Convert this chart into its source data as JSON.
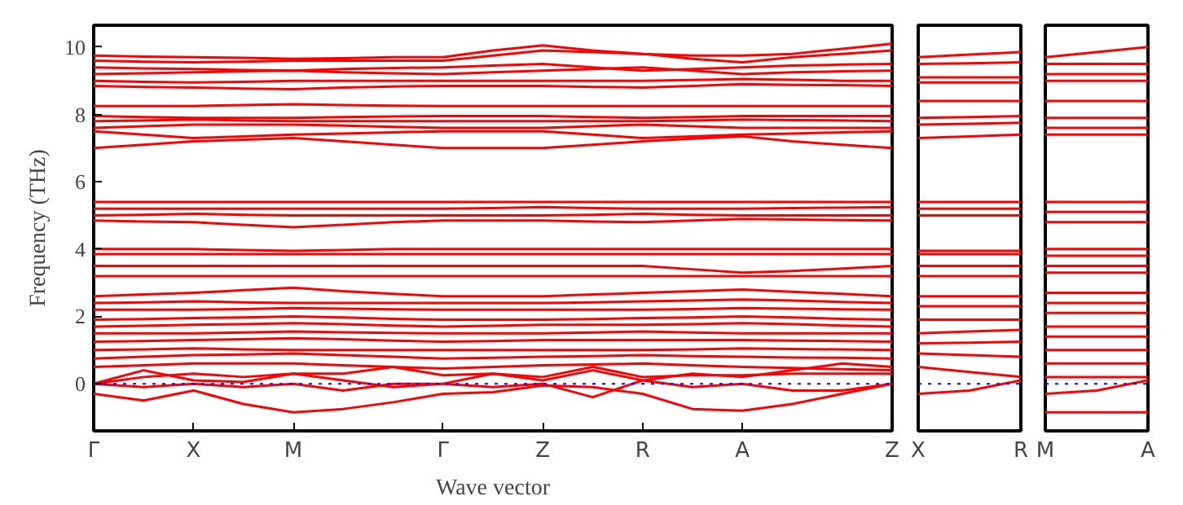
{
  "chart_data": [
    {
      "type": "line",
      "xlabel": "Wave vector",
      "ylabel": "Frequency (THz)",
      "categories": [
        "Γ",
        null,
        "X",
        null,
        "M",
        null,
        null,
        "Γ",
        null,
        "Z",
        null,
        "R",
        null,
        "A",
        null,
        null,
        "Z"
      ],
      "ylim": [
        -1.4,
        10.65
      ],
      "yticks": [
        0,
        2,
        4,
        6,
        8,
        10
      ],
      "grid": false,
      "line_style": "solid",
      "ref_lines": [
        {
          "axis": "y",
          "value": 0,
          "color": "#0000ff",
          "line_style": "dotted"
        }
      ],
      "series": [
        {
          "color": "#ff0000",
          "values": [
            9.75,
            9.72,
            9.7,
            9.68,
            9.65,
            9.67,
            9.7,
            9.7,
            9.9,
            10.05,
            9.9,
            9.8,
            9.75,
            9.75,
            9.8,
            9.95,
            10.1
          ]
        },
        {
          "color": "#ff0000",
          "values": [
            9.6,
            9.57,
            9.55,
            9.57,
            9.6,
            9.6,
            9.6,
            9.6,
            9.75,
            9.9,
            9.85,
            9.8,
            9.65,
            9.55,
            9.7,
            9.8,
            9.9
          ]
        },
        {
          "color": "#ff0000",
          "values": [
            9.4,
            9.37,
            9.35,
            9.32,
            9.3,
            9.35,
            9.38,
            9.4,
            9.45,
            9.5,
            9.4,
            9.3,
            9.35,
            9.4,
            9.45,
            9.48,
            9.5
          ]
        },
        {
          "color": "#ff0000",
          "values": [
            9.2,
            9.22,
            9.25,
            9.28,
            9.3,
            9.25,
            9.22,
            9.2,
            9.25,
            9.3,
            9.35,
            9.4,
            9.3,
            9.2,
            9.25,
            9.28,
            9.3
          ]
        },
        {
          "color": "#ff0000",
          "values": [
            9.0,
            8.97,
            8.95,
            8.97,
            9.0,
            9.0,
            9.0,
            9.0,
            9.0,
            9.0,
            9.0,
            9.0,
            9.02,
            9.05,
            9.03,
            9.0,
            9.0
          ]
        },
        {
          "color": "#ff0000",
          "values": [
            8.85,
            8.82,
            8.8,
            8.77,
            8.75,
            8.8,
            8.83,
            8.85,
            8.85,
            8.85,
            8.82,
            8.8,
            8.85,
            8.9,
            8.88,
            8.87,
            8.85
          ]
        },
        {
          "color": "#ff0000",
          "values": [
            8.25,
            8.25,
            8.25,
            8.28,
            8.3,
            8.28,
            8.26,
            8.25,
            8.25,
            8.25,
            8.25,
            8.25,
            8.25,
            8.25,
            8.25,
            8.25,
            8.25
          ]
        },
        {
          "color": "#ff0000",
          "values": [
            7.95,
            7.92,
            7.9,
            7.9,
            7.9,
            7.92,
            7.94,
            7.95,
            7.95,
            7.95,
            7.92,
            7.9,
            7.92,
            7.95,
            7.95,
            7.95,
            7.95
          ]
        },
        {
          "color": "#ff0000",
          "values": [
            7.8,
            7.82,
            7.85,
            7.82,
            7.8,
            7.8,
            7.8,
            7.8,
            7.8,
            7.8,
            7.8,
            7.8,
            7.82,
            7.85,
            7.83,
            7.82,
            7.8
          ]
        },
        {
          "color": "#ff0000",
          "values": [
            7.6,
            7.65,
            7.7,
            7.7,
            7.7,
            7.67,
            7.63,
            7.6,
            7.6,
            7.6,
            7.65,
            7.7,
            7.65,
            7.6,
            7.6,
            7.6,
            7.6
          ]
        },
        {
          "color": "#ff0000",
          "values": [
            7.5,
            7.4,
            7.3,
            7.35,
            7.4,
            7.43,
            7.47,
            7.5,
            7.5,
            7.5,
            7.4,
            7.3,
            7.35,
            7.4,
            7.43,
            7.47,
            7.5
          ]
        },
        {
          "color": "#ff0000",
          "values": [
            7.0,
            7.1,
            7.2,
            7.25,
            7.3,
            7.2,
            7.1,
            7.0,
            7.0,
            7.0,
            7.1,
            7.2,
            7.28,
            7.35,
            7.2,
            7.1,
            7.0
          ]
        },
        {
          "color": "#ff0000",
          "values": [
            5.4,
            5.4,
            5.4,
            5.4,
            5.4,
            5.4,
            5.4,
            5.4,
            5.4,
            5.4,
            5.4,
            5.4,
            5.4,
            5.4,
            5.4,
            5.4,
            5.4
          ]
        },
        {
          "color": "#ff0000",
          "values": [
            5.2,
            5.2,
            5.2,
            5.2,
            5.2,
            5.2,
            5.2,
            5.2,
            5.22,
            5.25,
            5.22,
            5.2,
            5.2,
            5.2,
            5.22,
            5.23,
            5.25
          ]
        },
        {
          "color": "#ff0000",
          "values": [
            5.0,
            5.02,
            5.05,
            5.02,
            5.0,
            5.0,
            5.0,
            5.0,
            5.0,
            5.0,
            5.02,
            5.05,
            5.02,
            5.0,
            5.0,
            5.0,
            5.0
          ]
        },
        {
          "color": "#ff0000",
          "values": [
            4.85,
            4.82,
            4.8,
            4.72,
            4.65,
            4.72,
            4.8,
            4.85,
            4.85,
            4.85,
            4.82,
            4.8,
            4.85,
            4.9,
            4.88,
            4.86,
            4.85
          ]
        },
        {
          "color": "#ff0000",
          "values": [
            4.0,
            4.0,
            4.0,
            3.97,
            3.95,
            3.97,
            4.0,
            4.0,
            4.0,
            4.0,
            4.0,
            4.0,
            4.0,
            4.0,
            4.0,
            4.0,
            4.0
          ]
        },
        {
          "color": "#ff0000",
          "values": [
            3.85,
            3.85,
            3.85,
            3.85,
            3.85,
            3.85,
            3.85,
            3.85,
            3.85,
            3.85,
            3.85,
            3.85,
            3.85,
            3.85,
            3.85,
            3.85,
            3.85
          ]
        },
        {
          "color": "#ff0000",
          "values": [
            3.5,
            3.5,
            3.5,
            3.5,
            3.5,
            3.5,
            3.5,
            3.5,
            3.5,
            3.5,
            3.5,
            3.5,
            3.4,
            3.3,
            3.35,
            3.42,
            3.5
          ]
        },
        {
          "color": "#ff0000",
          "values": [
            3.2,
            3.2,
            3.2,
            3.2,
            3.2,
            3.2,
            3.2,
            3.2,
            3.2,
            3.2,
            3.2,
            3.2,
            3.2,
            3.2,
            3.2,
            3.2,
            3.2
          ]
        },
        {
          "color": "#ff0000",
          "values": [
            2.6,
            2.65,
            2.7,
            2.78,
            2.85,
            2.75,
            2.67,
            2.6,
            2.6,
            2.6,
            2.65,
            2.7,
            2.75,
            2.8,
            2.73,
            2.67,
            2.6
          ]
        },
        {
          "color": "#ff0000",
          "values": [
            2.4,
            2.42,
            2.45,
            2.42,
            2.4,
            2.4,
            2.4,
            2.4,
            2.4,
            2.4,
            2.42,
            2.45,
            2.47,
            2.5,
            2.47,
            2.43,
            2.4
          ]
        },
        {
          "color": "#ff0000",
          "values": [
            2.2,
            2.2,
            2.2,
            2.22,
            2.25,
            2.23,
            2.21,
            2.2,
            2.2,
            2.2,
            2.2,
            2.2,
            2.22,
            2.25,
            2.23,
            2.21,
            2.2
          ]
        },
        {
          "color": "#ff0000",
          "values": [
            1.9,
            1.92,
            1.95,
            1.97,
            2.0,
            1.97,
            1.93,
            1.9,
            1.9,
            1.9,
            1.92,
            1.95,
            1.97,
            2.0,
            1.97,
            1.93,
            1.9
          ]
        },
        {
          "color": "#ff0000",
          "values": [
            1.7,
            1.72,
            1.75,
            1.77,
            1.8,
            1.77,
            1.73,
            1.7,
            1.72,
            1.75,
            1.75,
            1.75,
            1.77,
            1.8,
            1.77,
            1.73,
            1.7
          ]
        },
        {
          "color": "#ff0000",
          "values": [
            1.5,
            1.5,
            1.5,
            1.52,
            1.55,
            1.53,
            1.51,
            1.5,
            1.5,
            1.5,
            1.52,
            1.55,
            1.52,
            1.5,
            1.5,
            1.5,
            1.5
          ]
        },
        {
          "color": "#ff0000",
          "values": [
            1.25,
            1.27,
            1.3,
            1.32,
            1.35,
            1.32,
            1.28,
            1.25,
            1.27,
            1.3,
            1.3,
            1.3,
            1.3,
            1.3,
            1.28,
            1.27,
            1.25
          ]
        },
        {
          "color": "#ff0000",
          "values": [
            1.0,
            1.02,
            1.05,
            1.02,
            1.0,
            1.0,
            1.0,
            1.0,
            1.0,
            1.0,
            1.0,
            1.0,
            1.02,
            1.05,
            1.03,
            1.02,
            1.0
          ]
        },
        {
          "color": "#ff0000",
          "values": [
            0.75,
            0.8,
            0.85,
            0.87,
            0.9,
            0.85,
            0.8,
            0.75,
            0.77,
            0.8,
            0.82,
            0.85,
            0.82,
            0.8,
            0.78,
            0.77,
            0.75
          ]
        },
        {
          "color": "#ff0000",
          "values": [
            0.5,
            0.55,
            0.6,
            0.6,
            0.6,
            0.55,
            0.5,
            0.45,
            0.5,
            0.55,
            0.57,
            0.6,
            0.55,
            0.5,
            0.47,
            0.43,
            0.4
          ]
        },
        {
          "color": "#ff0000",
          "values": [
            0,
            0.4,
            0.1,
            0.05,
            0.3,
            0.1,
            -0.1,
            0,
            0.3,
            0.1,
            0.4,
            0.1,
            0.3,
            0.2,
            0.4,
            0.6,
            0.5
          ]
        },
        {
          "color": "#ff0000",
          "values": [
            0,
            -0.1,
            0,
            -0.1,
            0,
            -0.2,
            0,
            0,
            -0.1,
            0,
            -0.4,
            0.1,
            -0.1,
            0,
            -0.2,
            -0.2,
            0
          ]
        },
        {
          "color": "#ff0000",
          "values": [
            -0.3,
            -0.5,
            -0.2,
            -0.6,
            -0.85,
            -0.75,
            -0.55,
            -0.3,
            -0.25,
            -0.05,
            -0.1,
            -0.3,
            -0.75,
            -0.8,
            -0.6,
            -0.3,
            0
          ]
        },
        {
          "color": "#ff0000",
          "values": [
            0,
            0.2,
            0.3,
            0.2,
            0.3,
            0.3,
            0.5,
            0.25,
            0.3,
            0.2,
            0.5,
            0.2,
            0.25,
            0.25,
            0.3,
            0.3,
            0.3
          ]
        }
      ]
    },
    {
      "type": "line",
      "categories": [
        "X",
        null,
        "R"
      ],
      "ylim": [
        -1.4,
        10.65
      ],
      "tick_labels": "x",
      "grid": false,
      "line_style": "solid",
      "ref_lines": [
        {
          "axis": "y",
          "value": 0,
          "color": "#0000ff",
          "line_style": "dotted"
        }
      ],
      "series": [
        {
          "color": "#ff0000",
          "values": [
            9.7,
            9.78,
            9.85
          ]
        },
        {
          "color": "#ff0000",
          "values": [
            9.5,
            9.52,
            9.55
          ]
        },
        {
          "color": "#ff0000",
          "values": [
            9.1,
            9.1,
            9.1
          ]
        },
        {
          "color": "#ff0000",
          "values": [
            8.95,
            8.95,
            8.95
          ]
        },
        {
          "color": "#ff0000",
          "values": [
            8.4,
            8.4,
            8.4
          ]
        },
        {
          "color": "#ff0000",
          "values": [
            7.9,
            7.92,
            7.95
          ]
        },
        {
          "color": "#ff0000",
          "values": [
            7.7,
            7.72,
            7.75
          ]
        },
        {
          "color": "#ff0000",
          "values": [
            7.3,
            7.35,
            7.4
          ]
        },
        {
          "color": "#ff0000",
          "values": [
            5.4,
            5.4,
            5.4
          ]
        },
        {
          "color": "#ff0000",
          "values": [
            5.2,
            5.2,
            5.2
          ]
        },
        {
          "color": "#ff0000",
          "values": [
            5.0,
            5.0,
            5.0
          ]
        },
        {
          "color": "#ff0000",
          "values": [
            3.95,
            3.95,
            3.95
          ]
        },
        {
          "color": "#ff0000",
          "values": [
            3.85,
            3.85,
            3.85
          ]
        },
        {
          "color": "#ff0000",
          "values": [
            3.5,
            3.5,
            3.5
          ]
        },
        {
          "color": "#ff0000",
          "values": [
            3.2,
            3.2,
            3.2
          ]
        },
        {
          "color": "#ff0000",
          "values": [
            2.6,
            2.6,
            2.6
          ]
        },
        {
          "color": "#ff0000",
          "values": [
            2.3,
            2.3,
            2.3
          ]
        },
        {
          "color": "#ff0000",
          "values": [
            1.9,
            1.9,
            1.9
          ]
        },
        {
          "color": "#ff0000",
          "values": [
            1.5,
            1.55,
            1.6
          ]
        },
        {
          "color": "#ff0000",
          "values": [
            1.2,
            1.22,
            1.25
          ]
        },
        {
          "color": "#ff0000",
          "values": [
            0.9,
            0.85,
            0.8
          ]
        },
        {
          "color": "#ff0000",
          "values": [
            0.5,
            0.35,
            0.2
          ]
        },
        {
          "color": "#ff0000",
          "values": [
            -0.3,
            -0.2,
            0.1
          ]
        }
      ]
    },
    {
      "type": "line",
      "categories": [
        "M",
        null,
        "A"
      ],
      "ylim": [
        -1.4,
        10.65
      ],
      "tick_labels": "x",
      "grid": false,
      "line_style": "solid",
      "ref_lines": [
        {
          "axis": "y",
          "value": 0,
          "color": "#0000ff",
          "line_style": "dotted"
        }
      ],
      "series": [
        {
          "color": "#ff0000",
          "values": [
            9.7,
            9.85,
            10.0
          ]
        },
        {
          "color": "#ff0000",
          "values": [
            9.5,
            9.5,
            9.5
          ]
        },
        {
          "color": "#ff0000",
          "values": [
            9.2,
            9.2,
            9.2
          ]
        },
        {
          "color": "#ff0000",
          "values": [
            9.0,
            9.0,
            9.0
          ]
        },
        {
          "color": "#ff0000",
          "values": [
            8.4,
            8.4,
            8.4
          ]
        },
        {
          "color": "#ff0000",
          "values": [
            7.9,
            7.9,
            7.9
          ]
        },
        {
          "color": "#ff0000",
          "values": [
            7.6,
            7.6,
            7.6
          ]
        },
        {
          "color": "#ff0000",
          "values": [
            7.4,
            7.4,
            7.4
          ]
        },
        {
          "color": "#ff0000",
          "values": [
            5.4,
            5.4,
            5.4
          ]
        },
        {
          "color": "#ff0000",
          "values": [
            5.1,
            5.1,
            5.1
          ]
        },
        {
          "color": "#ff0000",
          "values": [
            4.8,
            4.8,
            4.8
          ]
        },
        {
          "color": "#ff0000",
          "values": [
            4.0,
            4.0,
            4.0
          ]
        },
        {
          "color": "#ff0000",
          "values": [
            3.8,
            3.8,
            3.8
          ]
        },
        {
          "color": "#ff0000",
          "values": [
            3.5,
            3.5,
            3.5
          ]
        },
        {
          "color": "#ff0000",
          "values": [
            3.3,
            3.3,
            3.3
          ]
        },
        {
          "color": "#ff0000",
          "values": [
            2.7,
            2.7,
            2.7
          ]
        },
        {
          "color": "#ff0000",
          "values": [
            2.4,
            2.4,
            2.4
          ]
        },
        {
          "color": "#ff0000",
          "values": [
            2.1,
            2.1,
            2.1
          ]
        },
        {
          "color": "#ff0000",
          "values": [
            1.7,
            1.7,
            1.7
          ]
        },
        {
          "color": "#ff0000",
          "values": [
            1.4,
            1.4,
            1.4
          ]
        },
        {
          "color": "#ff0000",
          "values": [
            1.0,
            1.0,
            1.0
          ]
        },
        {
          "color": "#ff0000",
          "values": [
            0.6,
            0.6,
            0.6
          ]
        },
        {
          "color": "#ff0000",
          "values": [
            0.2,
            0.2,
            0.2
          ]
        },
        {
          "color": "#ff0000",
          "values": [
            -0.3,
            -0.2,
            0.1
          ]
        },
        {
          "color": "#ff0000",
          "values": [
            -0.85,
            -0.85,
            -0.85
          ]
        }
      ]
    }
  ]
}
